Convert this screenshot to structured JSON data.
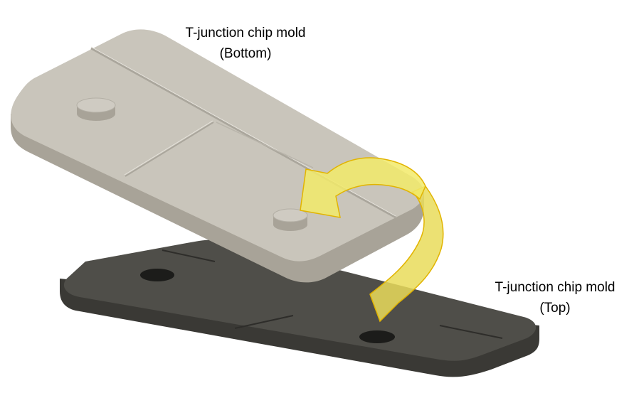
{
  "labels": {
    "bottom_mold": {
      "line1": "T-junction chip mold",
      "line2": "(Bottom)"
    },
    "top_mold": {
      "line1": "T-junction chip mold",
      "line2": "(Top)"
    }
  },
  "colors": {
    "bottom_mold_face": "#c9c5bb",
    "bottom_mold_side": "#a8a398",
    "top_mold_face": "#4f4e49",
    "top_mold_side": "#3a3935",
    "arrow_fill": "#f2ea6a",
    "arrow_stroke": "#e2b400"
  }
}
